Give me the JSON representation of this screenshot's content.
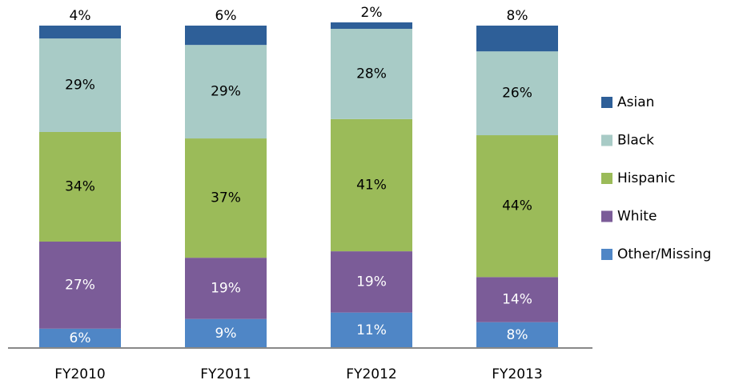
{
  "chart_data": {
    "type": "stacked_bar",
    "categories": [
      "FY2010",
      "FY2011",
      "FY2012",
      "FY2013"
    ],
    "ylim": [
      0,
      100
    ],
    "series": [
      {
        "name": "Other/Missing",
        "color": "#4f86c6",
        "label_color": "#ffffff",
        "values": [
          6,
          9,
          11,
          8
        ],
        "value_labels": [
          "6%",
          "9%",
          "11%",
          "8%"
        ]
      },
      {
        "name": "White",
        "color": "#7b5c98",
        "label_color": "#ffffff",
        "values": [
          27,
          19,
          19,
          14
        ],
        "value_labels": [
          "27%",
          "19%",
          "19%",
          "14%"
        ]
      },
      {
        "name": "Hispanic",
        "color": "#9bbb59",
        "label_color": "#000000",
        "values": [
          34,
          37,
          41,
          44
        ],
        "value_labels": [
          "34%",
          "37%",
          "41%",
          "44%"
        ]
      },
      {
        "name": "Black",
        "color": "#a8cbc6",
        "label_color": "#000000",
        "values": [
          29,
          29,
          28,
          26
        ],
        "value_labels": [
          "29%",
          "29%",
          "28%",
          "26%"
        ]
      },
      {
        "name": "Asian",
        "color": "#2e5f98",
        "label_color": "#000000",
        "values": [
          4,
          6,
          2,
          8
        ],
        "value_labels": [
          "4%",
          "6%",
          "2%",
          "8%"
        ]
      }
    ]
  }
}
